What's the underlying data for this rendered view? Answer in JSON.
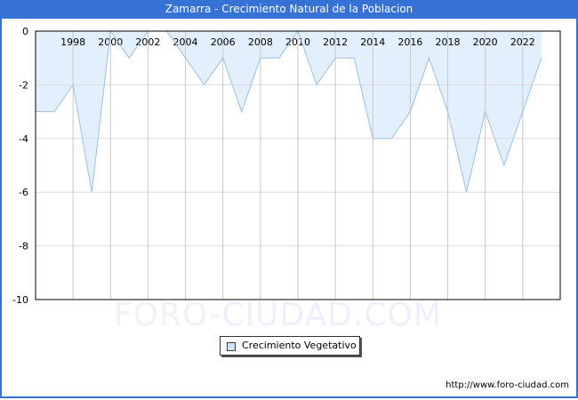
{
  "header": {
    "title": "Zamarra - Crecimiento Natural de la Poblacion"
  },
  "legend": {
    "label": "Crecimiento Vegetativo"
  },
  "footer": {
    "url": "http://www.foro-ciudad.com"
  },
  "watermark": {
    "part1": "FORO-",
    "part2": "CIUDAD.COM"
  },
  "colors": {
    "titlebar": "#3672d6",
    "fill": "#e2f0fe",
    "line": "#9dbfea",
    "grid": "#dddddd",
    "vgrid": "#c8c8c8"
  },
  "chart_data": {
    "type": "area",
    "title": "Zamarra - Crecimiento Natural de la Poblacion",
    "xlabel": "",
    "ylabel": "",
    "x": [
      1996,
      1997,
      1998,
      1999,
      2000,
      2001,
      2002,
      2003,
      2004,
      2005,
      2006,
      2007,
      2008,
      2009,
      2010,
      2011,
      2012,
      2013,
      2014,
      2015,
      2016,
      2017,
      2018,
      2019,
      2020,
      2021,
      2022,
      2023
    ],
    "series": [
      {
        "name": "Crecimiento Vegetativo",
        "values": [
          -3,
          -3,
          -2,
          -6,
          0,
          -1,
          0,
          0,
          -1,
          -2,
          -1,
          -3,
          -1,
          -1,
          0,
          -2,
          -1,
          -1,
          -4,
          -4,
          -3,
          -1,
          -3,
          -6,
          -3,
          -5,
          -3,
          -1
        ]
      }
    ],
    "x_tick_labels": [
      "1998",
      "2000",
      "2002",
      "2004",
      "2006",
      "2008",
      "2010",
      "2012",
      "2014",
      "2016",
      "2018",
      "2020",
      "2022"
    ],
    "y_tick_labels": [
      "0",
      "-2",
      "-4",
      "-6",
      "-8",
      "-10"
    ],
    "ylim": [
      -10,
      0
    ],
    "grid": true,
    "legend_position": "bottom"
  }
}
